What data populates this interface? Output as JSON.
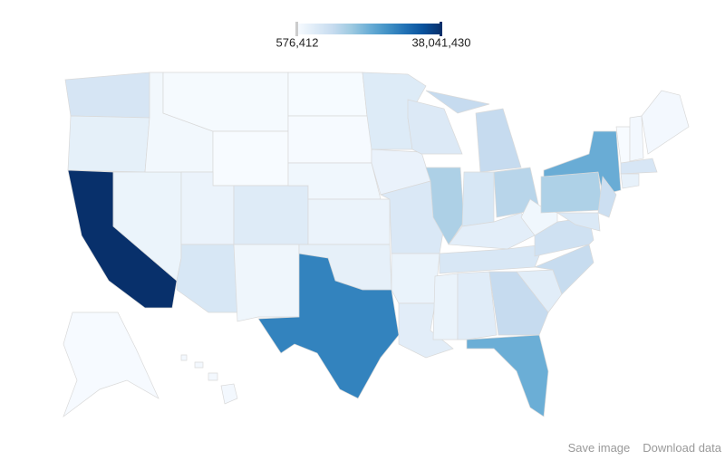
{
  "legend": {
    "min": {
      "value": 576412,
      "label": "576,412"
    },
    "max": {
      "value": 38041430,
      "label": "38,041,430"
    }
  },
  "values": [
    6897012,
    3899353,
    38041430,
    2758931,
    1595728,
    1005141,
    576412,
    2855287,
    6553255,
    5187582,
    2085538,
    699628,
    833354,
    1855525,
    2885905,
    3814820,
    26059203,
    5379139,
    3074186,
    6021988,
    2949131,
    4601893,
    5726398,
    12875255,
    9883360,
    6537334,
    11544225,
    4380415,
    6456243,
    2984926,
    4822023,
    9919945,
    19317568,
    4723723,
    9752073,
    8185867,
    1855413,
    12763536,
    19570261,
    8864590,
    5884563,
    626011,
    1320718,
    1329192,
    6646144,
    3590347,
    731449,
    1392313
  ],
  "tools": {
    "save": "Save image",
    "download": "Download data"
  }
}
